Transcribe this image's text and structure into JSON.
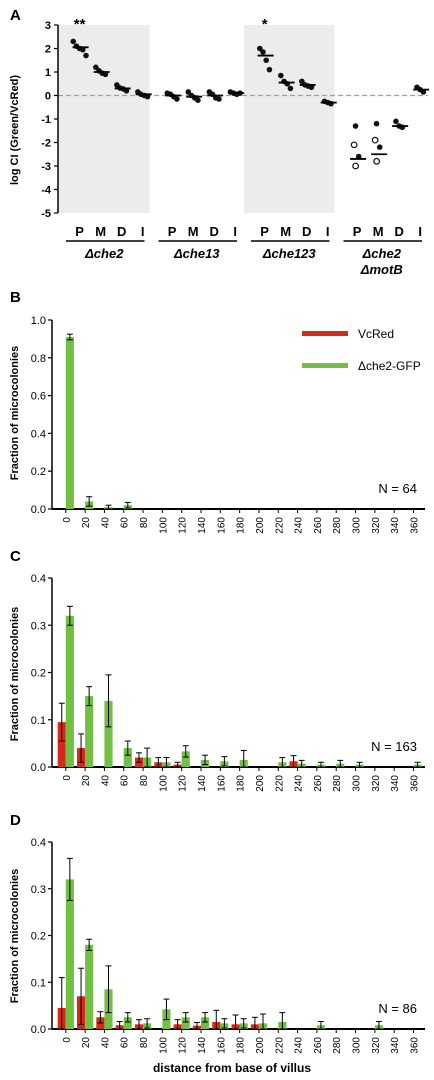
{
  "colors": {
    "red": "#d42a1c",
    "green": "#72bf44",
    "shade": "#ececec",
    "axis": "#000000",
    "dash": "#a0a0a0"
  },
  "panelA": {
    "letter": "A",
    "ylabel": "log CI (Green/VcRed)",
    "ylim": [
      -5,
      3
    ],
    "yticks": [
      "3",
      "2",
      "1",
      "0",
      "-1",
      "-2",
      "-3",
      "-4",
      "-5"
    ],
    "xlabels": [
      "P",
      "M",
      "D",
      "I"
    ],
    "groups": [
      {
        "line1": "Δche2",
        "line2": "",
        "shaded": true,
        "annotation": "**",
        "positions": [
          {
            "label": "P",
            "mean": 2.05,
            "points": [
              2.3,
              2.1,
              2.0,
              1.95,
              1.7
            ],
            "open": []
          },
          {
            "label": "M",
            "mean": 1.0,
            "points": [
              1.2,
              1.05,
              0.95,
              0.9
            ],
            "open": []
          },
          {
            "label": "D",
            "mean": 0.3,
            "points": [
              0.45,
              0.32,
              0.28,
              0.2
            ],
            "open": []
          },
          {
            "label": "I",
            "mean": 0.05,
            "points": [
              0.15,
              0.05,
              0.0,
              -0.05
            ],
            "open": []
          }
        ]
      },
      {
        "line1": "Δche13",
        "line2": "",
        "shaded": false,
        "annotation": "",
        "positions": [
          {
            "label": "P",
            "mean": 0.0,
            "points": [
              0.1,
              0.05,
              -0.05,
              -0.15
            ],
            "open": []
          },
          {
            "label": "M",
            "mean": -0.05,
            "points": [
              0.15,
              0.0,
              -0.1,
              -0.2
            ],
            "open": []
          },
          {
            "label": "D",
            "mean": 0.0,
            "points": [
              0.15,
              0.05,
              -0.1,
              -0.15
            ],
            "open": []
          },
          {
            "label": "I",
            "mean": 0.1,
            "points": [
              0.15,
              0.1,
              0.05,
              0.1
            ],
            "open": []
          }
        ]
      },
      {
        "line1": "Δche123",
        "line2": "",
        "shaded": true,
        "annotation": "*",
        "positions": [
          {
            "label": "P",
            "mean": 1.7,
            "points": [
              2.0,
              1.85,
              1.5,
              1.1
            ],
            "open": []
          },
          {
            "label": "M",
            "mean": 0.55,
            "points": [
              0.85,
              0.6,
              0.5,
              0.3
            ],
            "open": []
          },
          {
            "label": "D",
            "mean": 0.45,
            "points": [
              0.6,
              0.45,
              0.4,
              0.35
            ],
            "open": []
          },
          {
            "label": "I",
            "mean": -0.3,
            "points": [
              -0.25,
              -0.3,
              -0.35
            ],
            "open": []
          }
        ]
      },
      {
        "line1": "Δche2",
        "line2": "ΔmotB",
        "shaded": false,
        "annotation": "",
        "positions": [
          {
            "label": "P",
            "mean": -2.7,
            "points": [
              -1.3,
              -2.6
            ],
            "open": [
              -2.1,
              -3.0
            ]
          },
          {
            "label": "M",
            "mean": -2.5,
            "points": [
              -1.2,
              -2.2
            ],
            "open": [
              -1.9,
              -2.8
            ]
          },
          {
            "label": "D",
            "mean": -1.3,
            "points": [
              -1.1,
              -1.3,
              -1.35
            ],
            "open": []
          },
          {
            "label": "I",
            "mean": 0.25,
            "points": [
              0.35,
              0.25,
              0.15
            ],
            "open": []
          }
        ]
      }
    ]
  },
  "legend": {
    "red": "VcRed",
    "green": "Δche2-GFP"
  },
  "chart_data": [
    {
      "type": "bar",
      "panel": "B",
      "ylabel": "Fraction of microcolonies",
      "ylim": [
        0,
        1.0
      ],
      "yticks": [
        "0.0",
        "0.2",
        "0.4",
        "0.6",
        "0.8",
        "1.0"
      ],
      "n_label": "N = 64",
      "categories": [
        "0",
        "20",
        "40",
        "60",
        "80",
        "100",
        "120",
        "140",
        "160",
        "180",
        "200",
        "220",
        "240",
        "260",
        "280",
        "300",
        "320",
        "340",
        "360"
      ],
      "series": [
        {
          "name": "VcRed",
          "values": [
            0,
            0,
            0,
            0,
            0,
            0,
            0,
            0,
            0,
            0,
            0,
            0,
            0,
            0,
            0,
            0,
            0,
            0,
            0
          ],
          "errors": [
            0,
            0,
            0,
            0,
            0,
            0,
            0,
            0,
            0,
            0,
            0,
            0,
            0,
            0,
            0,
            0,
            0,
            0,
            0
          ]
        },
        {
          "name": "Δche2-GFP",
          "values": [
            0.91,
            0.04,
            0.01,
            0.02,
            0,
            0,
            0,
            0,
            0,
            0,
            0,
            0,
            0,
            0,
            0,
            0,
            0,
            0,
            0
          ],
          "errors": [
            0.015,
            0.025,
            0.01,
            0.015,
            0,
            0,
            0,
            0,
            0,
            0,
            0,
            0,
            0,
            0,
            0,
            0,
            0,
            0,
            0
          ]
        }
      ]
    },
    {
      "type": "bar",
      "panel": "C",
      "ylabel": "Fraction of microcolonies",
      "ylim": [
        0,
        0.4
      ],
      "yticks": [
        "0.0",
        "0.1",
        "0.2",
        "0.3",
        "0.4"
      ],
      "n_label": "N = 163",
      "categories": [
        "0",
        "20",
        "40",
        "60",
        "80",
        "100",
        "120",
        "140",
        "160",
        "180",
        "200",
        "220",
        "240",
        "260",
        "280",
        "300",
        "320",
        "340",
        "360"
      ],
      "series": [
        {
          "name": "VcRed",
          "values": [
            0.095,
            0.04,
            0,
            0,
            0.02,
            0.01,
            0.005,
            0,
            0,
            0,
            0,
            0,
            0.012,
            0,
            0,
            0,
            0,
            0,
            0
          ],
          "errors": [
            0.04,
            0.03,
            0,
            0,
            0.01,
            0.01,
            0.005,
            0,
            0,
            0,
            0,
            0,
            0.012,
            0,
            0,
            0,
            0,
            0,
            0
          ]
        },
        {
          "name": "Δche2-GFP",
          "values": [
            0.32,
            0.15,
            0.14,
            0.04,
            0.02,
            0.01,
            0.033,
            0.015,
            0.012,
            0.015,
            0,
            0.01,
            0.007,
            0.005,
            0.007,
            0.005,
            0,
            0,
            0.005
          ],
          "errors": [
            0.02,
            0.02,
            0.055,
            0.015,
            0.02,
            0.01,
            0.012,
            0.01,
            0.01,
            0.02,
            0,
            0.01,
            0.007,
            0.005,
            0.007,
            0.005,
            0,
            0,
            0.005
          ]
        }
      ]
    },
    {
      "type": "bar",
      "panel": "D",
      "ylabel": "Fraction of microcolonies",
      "ylim": [
        0,
        0.4
      ],
      "yticks": [
        "0.0",
        "0.1",
        "0.2",
        "0.3",
        "0.4"
      ],
      "n_label": "N = 86",
      "xlabel": "distance from base of villus",
      "categories": [
        "0",
        "20",
        "40",
        "60",
        "80",
        "100",
        "120",
        "140",
        "160",
        "180",
        "200",
        "220",
        "240",
        "260",
        "280",
        "300",
        "320",
        "340",
        "360"
      ],
      "series": [
        {
          "name": "VcRed",
          "values": [
            0.045,
            0.07,
            0.025,
            0.008,
            0.01,
            0,
            0.01,
            0.007,
            0.015,
            0.01,
            0.01,
            0,
            0,
            0,
            0,
            0,
            0,
            0,
            0
          ],
          "errors": [
            0.065,
            0.06,
            0.012,
            0.008,
            0.01,
            0,
            0.01,
            0.007,
            0.025,
            0.02,
            0.015,
            0,
            0,
            0,
            0,
            0,
            0,
            0,
            0
          ],
          "open": []
        },
        {
          "name": "Δche2-GFP",
          "values": [
            0.32,
            0.18,
            0.085,
            0.025,
            0.012,
            0.042,
            0.025,
            0.025,
            0.012,
            0.012,
            0.012,
            0.015,
            0,
            0.008,
            0,
            0,
            0.008,
            0,
            0
          ],
          "errors": [
            0.045,
            0.012,
            0.05,
            0.01,
            0.01,
            0.022,
            0.01,
            0.01,
            0.01,
            0.01,
            0.02,
            0.02,
            0,
            0.008,
            0,
            0,
            0.008,
            0,
            0
          ]
        }
      ]
    }
  ]
}
